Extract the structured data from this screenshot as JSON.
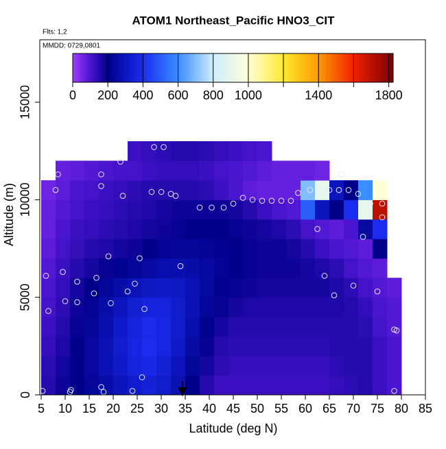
{
  "chart_data": {
    "type": "heatmap",
    "title": "ATOM1 Northeast_Pacific HNO3_CIT",
    "subtitle": "Flts: 1,2",
    "annotation": "MMDD: 0729,0801",
    "x_label": "Latitude (deg N)",
    "y_label": "Altitude (m)",
    "xlim": [
      5,
      85
    ],
    "ylim": [
      0,
      18200
    ],
    "xticks": [
      5,
      10,
      15,
      20,
      25,
      30,
      35,
      40,
      45,
      50,
      55,
      60,
      65,
      70,
      75,
      80,
      85
    ],
    "yticks": [
      0,
      5000,
      10000,
      15000
    ],
    "lat_edges": [
      5,
      8,
      11,
      14,
      17,
      20,
      23,
      26,
      29,
      32,
      35,
      38,
      41,
      44,
      47,
      50,
      53,
      56,
      59,
      62,
      65,
      68,
      71,
      74,
      77,
      80
    ],
    "alt_edges": [
      0,
      1000,
      2000,
      3000,
      4000,
      5000,
      6000,
      7000,
      8000,
      9000,
      10000,
      11000,
      12000,
      13000
    ],
    "values": [
      [
        150,
        180,
        200,
        230,
        260,
        300,
        330,
        350,
        330,
        280,
        200,
        150,
        120,
        120,
        120,
        120,
        120,
        120,
        120,
        120,
        130,
        140,
        150,
        120,
        100
      ],
      [
        140,
        170,
        200,
        240,
        280,
        320,
        360,
        380,
        350,
        300,
        230,
        170,
        140,
        130,
        130,
        130,
        130,
        130,
        130,
        130,
        140,
        150,
        150,
        120,
        100
      ],
      [
        130,
        160,
        200,
        240,
        280,
        330,
        370,
        400,
        370,
        320,
        250,
        190,
        150,
        140,
        140,
        140,
        140,
        140,
        140,
        140,
        150,
        150,
        150,
        120,
        100
      ],
      [
        120,
        150,
        190,
        230,
        270,
        320,
        360,
        390,
        370,
        330,
        270,
        210,
        170,
        150,
        150,
        150,
        150,
        150,
        150,
        150,
        150,
        150,
        140,
        110,
        90
      ],
      [
        110,
        140,
        180,
        220,
        260,
        300,
        340,
        360,
        360,
        330,
        280,
        230,
        190,
        170,
        160,
        160,
        160,
        160,
        160,
        160,
        160,
        150,
        130,
        100,
        90
      ],
      [
        100,
        130,
        170,
        200,
        230,
        260,
        290,
        310,
        320,
        310,
        280,
        240,
        210,
        190,
        180,
        170,
        170,
        170,
        170,
        170,
        160,
        140,
        110,
        90,
        80
      ],
      [
        90,
        120,
        150,
        170,
        190,
        210,
        230,
        250,
        270,
        270,
        260,
        240,
        220,
        200,
        190,
        180,
        180,
        180,
        170,
        160,
        140,
        110,
        90,
        80,
        null
      ],
      [
        80,
        110,
        130,
        150,
        160,
        170,
        180,
        200,
        220,
        230,
        230,
        220,
        210,
        200,
        190,
        180,
        180,
        170,
        150,
        120,
        100,
        90,
        80,
        200,
        null
      ],
      [
        70,
        100,
        120,
        130,
        140,
        150,
        160,
        170,
        180,
        190,
        200,
        200,
        200,
        190,
        180,
        170,
        160,
        140,
        110,
        90,
        80,
        100,
        250,
        400,
        null
      ],
      [
        70,
        90,
        110,
        120,
        130,
        140,
        150,
        160,
        170,
        180,
        180,
        180,
        180,
        170,
        150,
        120,
        100,
        90,
        500,
        300,
        200,
        400,
        900,
        1700,
        null
      ],
      [
        60,
        80,
        100,
        110,
        120,
        130,
        140,
        150,
        150,
        150,
        150,
        140,
        120,
        100,
        80,
        70,
        70,
        70,
        700,
        900,
        300,
        200,
        600,
        1000,
        null
      ],
      [
        null,
        70,
        80,
        90,
        100,
        110,
        110,
        120,
        130,
        130,
        130,
        120,
        110,
        100,
        90,
        80,
        70,
        70,
        70,
        60,
        null,
        null,
        null,
        null,
        null
      ],
      [
        null,
        null,
        null,
        null,
        null,
        null,
        120,
        130,
        140,
        150,
        150,
        140,
        130,
        120,
        110,
        100,
        null,
        null,
        null,
        null,
        null,
        null,
        null,
        null,
        null
      ]
    ],
    "points_lat": [
      5.3,
      11,
      11.2,
      17.5,
      18,
      24,
      26,
      78.5,
      6.5,
      10,
      12.5,
      9.5,
      12.5,
      6,
      16,
      16.5,
      19.5,
      23,
      24.5,
      26.5,
      19,
      25.5,
      34,
      17.5,
      17.5,
      8,
      8.5,
      21.5,
      22,
      28,
      30,
      32,
      33,
      28.5,
      30.5,
      38,
      40.5,
      43,
      45,
      47,
      49,
      51,
      53,
      55,
      57,
      58.5,
      61,
      63,
      65,
      67,
      69,
      71,
      73.5,
      76,
      76,
      72,
      62.5,
      64,
      66,
      70,
      75,
      78.5,
      79,
      67.5
    ],
    "points_alt": [
      200,
      150,
      250,
      400,
      150,
      200,
      900,
      200,
      4300,
      4800,
      4750,
      6300,
      5800,
      6100,
      5200,
      6000,
      4700,
      5300,
      5700,
      4400,
      7100,
      7000,
      6600,
      10700,
      11300,
      10500,
      11300,
      11950,
      10200,
      10400,
      10400,
      10300,
      10200,
      12700,
      12700,
      9600,
      9600,
      9600,
      9800,
      10100,
      10000,
      9950,
      9950,
      9950,
      9950,
      10350,
      10500,
      10500,
      10500,
      10500,
      10500,
      10300,
      9800,
      9800,
      9100,
      8100,
      8500,
      6100,
      5100,
      5600,
      5300,
      3350,
      3300,
      11300
    ],
    "point_color": "#e8e8ff",
    "colorscale": {
      "values": [
        0,
        100,
        200,
        400,
        600,
        800,
        1000,
        1200,
        1400,
        1600,
        1825
      ],
      "colors": [
        "#a23cff",
        "#4a14d0",
        "#00008b",
        "#1a2cf0",
        "#3a8cff",
        "#cdeeff",
        "#ffffd8",
        "#ffe830",
        "#ff9a00",
        "#f02000",
        "#7a0000"
      ]
    },
    "colorbar_lim": [
      0,
      1825
    ],
    "colorbar_ticks": [
      0,
      200,
      400,
      600,
      800,
      1000,
      1400,
      1800
    ],
    "colorbar_minor_ticks": [
      1200,
      1600
    ]
  }
}
